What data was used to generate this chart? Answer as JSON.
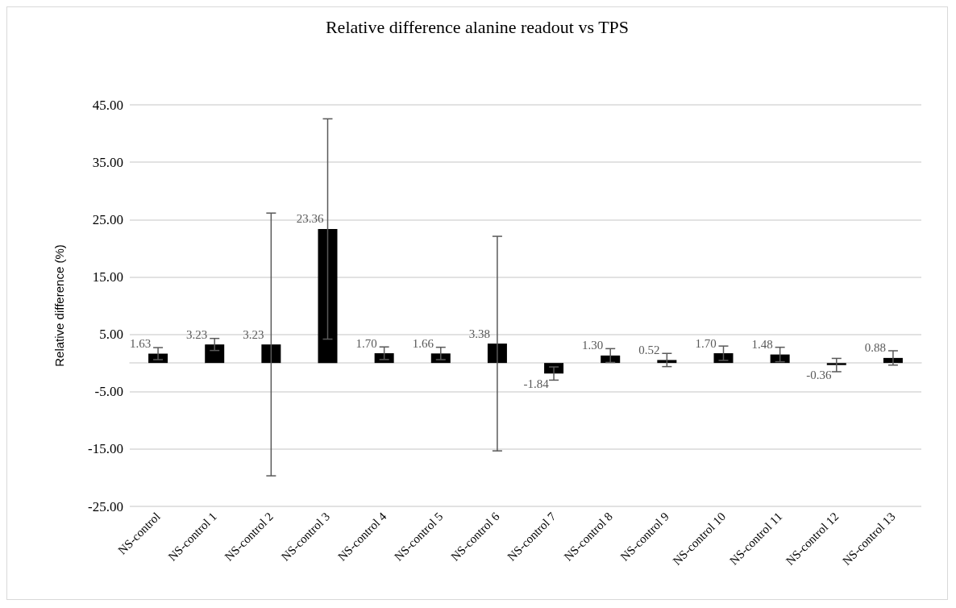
{
  "chart_data": {
    "type": "bar",
    "title": "Relative difference alanine readout vs TPS",
    "ylabel": "Relative difference (%)",
    "categories": [
      "NS-control",
      "NS-control 1",
      "NS-control 2",
      "NS-control 3",
      "NS-control 4",
      "NS-control 5",
      "NS-control 6",
      "NS-control 7",
      "NS-control 8",
      "NS-control 9",
      "NS-control 10",
      "NS-control 11",
      "NS-control 12",
      "NS-control 13"
    ],
    "values": [
      1.63,
      3.23,
      3.23,
      23.36,
      1.7,
      1.66,
      3.38,
      -1.84,
      1.3,
      0.52,
      1.7,
      1.48,
      -0.36,
      0.88
    ],
    "value_labels": [
      "1.63",
      "3.23",
      "3.23",
      "23.36",
      "1.70",
      "1.66",
      "3.38",
      "-1.84",
      "1.30",
      "0.52",
      "1.70",
      "1.48",
      "-0.36",
      "0.88"
    ],
    "errors": [
      1.05,
      1.05,
      22.9,
      19.2,
      1.1,
      1.08,
      18.7,
      1.15,
      1.2,
      1.15,
      1.25,
      1.26,
      1.16,
      1.25
    ],
    "color": "#000000",
    "ylim": [
      -25,
      45
    ],
    "yticks": [
      {
        "value": -25,
        "label": "-25.00"
      },
      {
        "value": -15,
        "label": "-15.00"
      },
      {
        "value": -5,
        "label": "-5.00"
      },
      {
        "value": 5,
        "label": "5.00"
      },
      {
        "value": 15,
        "label": "15.00"
      },
      {
        "value": 25,
        "label": "25.00"
      },
      {
        "value": 35,
        "label": "35.00"
      },
      {
        "value": 45,
        "label": "45.00"
      }
    ],
    "grid": "y"
  }
}
